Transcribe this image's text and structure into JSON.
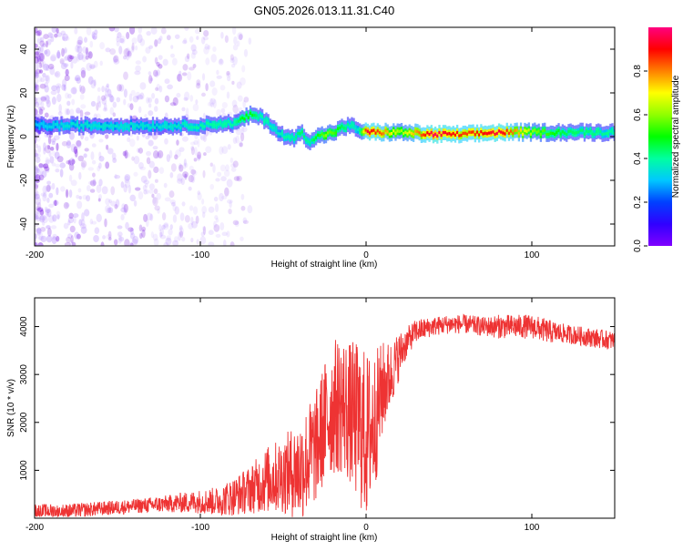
{
  "title": "GN05.2026.013.11.31.C40",
  "chart_data": [
    {
      "type": "heatmap",
      "name": "spectrogram",
      "xlabel": "Height of straight line (km)",
      "ylabel": "Frequency (Hz)",
      "xlim": [
        -200,
        150
      ],
      "ylim": [
        -50,
        50
      ],
      "xticks": [
        {
          "value": -200,
          "label": "-200"
        },
        {
          "value": -100,
          "label": "-100"
        },
        {
          "value": 0,
          "label": "0"
        },
        {
          "value": 100,
          "label": "100"
        }
      ],
      "yticks": [
        {
          "value": -40,
          "label": "-40"
        },
        {
          "value": -20,
          "label": "-20"
        },
        {
          "value": 0,
          "label": "0"
        },
        {
          "value": 20,
          "label": "20"
        },
        {
          "value": 40,
          "label": "40"
        }
      ],
      "ridge": {
        "x": [
          -200,
          -180,
          -160,
          -140,
          -120,
          -100,
          -90,
          -80,
          -75,
          -70,
          -65,
          -60,
          -55,
          -50,
          -45,
          -40,
          -35,
          -30,
          -25,
          -20,
          -15,
          -10,
          -5,
          0,
          10,
          20,
          40,
          60,
          80,
          100,
          120,
          150
        ],
        "freq": [
          5,
          5,
          5,
          5,
          5,
          5,
          6,
          6,
          8,
          10,
          9,
          7,
          3,
          0,
          -1,
          2,
          -2,
          0,
          1,
          2,
          4,
          5,
          3,
          2,
          2,
          2,
          1,
          1,
          2,
          2,
          2,
          2
        ],
        "amplitude": [
          0.3,
          0.35,
          0.35,
          0.35,
          0.35,
          0.4,
          0.4,
          0.4,
          0.5,
          0.5,
          0.4,
          0.4,
          0.35,
          0.4,
          0.4,
          0.45,
          0.4,
          0.5,
          0.6,
          0.55,
          0.45,
          0.4,
          0.35,
          0.95,
          0.8,
          0.6,
          0.97,
          0.85,
          0.95,
          0.6,
          0.45,
          0.4
        ]
      }
    },
    {
      "type": "colorbar",
      "label": "Normalized spectral amplitude",
      "range": [
        0,
        1
      ],
      "colors": [
        "#8000ff",
        "#3000ff",
        "#0040ff",
        "#00c8ff",
        "#00ffa0",
        "#00ff00",
        "#90ff00",
        "#ffff00",
        "#ff8000",
        "#ff0000",
        "#ff0080"
      ],
      "ticks": [
        {
          "value": 0.0,
          "label": "0.0"
        },
        {
          "value": 0.2,
          "label": "0.2"
        },
        {
          "value": 0.4,
          "label": "0.4"
        },
        {
          "value": 0.6,
          "label": "0.6"
        },
        {
          "value": 0.8,
          "label": "0.8"
        }
      ]
    },
    {
      "type": "line",
      "name": "snr",
      "xlabel": "Height of straight line (km)",
      "ylabel": "SNR (10 * v/v)",
      "xlim": [
        -200,
        150
      ],
      "ylim": [
        0,
        4600
      ],
      "color": "#ee3333",
      "xticks": [
        {
          "value": -200,
          "label": "-200"
        },
        {
          "value": -100,
          "label": "-100"
        },
        {
          "value": 0,
          "label": "0"
        },
        {
          "value": 100,
          "label": "100"
        }
      ],
      "yticks": [
        {
          "value": 1000,
          "label": "1000"
        },
        {
          "value": 2000,
          "label": "2000"
        },
        {
          "value": 3000,
          "label": "3000"
        },
        {
          "value": 4000,
          "label": "4000"
        }
      ],
      "envelope": {
        "x": [
          -200,
          -180,
          -160,
          -140,
          -120,
          -100,
          -90,
          -80,
          -70,
          -60,
          -50,
          -40,
          -30,
          -25,
          -20,
          -15,
          -10,
          -5,
          0,
          5,
          10,
          15,
          20,
          25,
          30,
          40,
          50,
          60,
          70,
          80,
          90,
          100,
          110,
          120,
          130,
          140,
          150
        ],
        "mean": [
          150,
          150,
          200,
          250,
          300,
          350,
          350,
          450,
          600,
          800,
          900,
          1000,
          1500,
          2000,
          2300,
          2400,
          2200,
          2000,
          1700,
          2000,
          2700,
          3000,
          3400,
          3700,
          3900,
          4000,
          4050,
          4050,
          4000,
          4000,
          4000,
          4000,
          3900,
          3850,
          3800,
          3750,
          3700
        ],
        "spread": [
          150,
          150,
          150,
          150,
          180,
          250,
          300,
          400,
          500,
          700,
          800,
          1100,
          1200,
          1300,
          1400,
          1500,
          1500,
          1700,
          1800,
          1500,
          1000,
          700,
          500,
          300,
          250,
          200,
          200,
          200,
          200,
          250,
          250,
          250,
          250,
          200,
          200,
          200,
          200
        ]
      }
    }
  ]
}
